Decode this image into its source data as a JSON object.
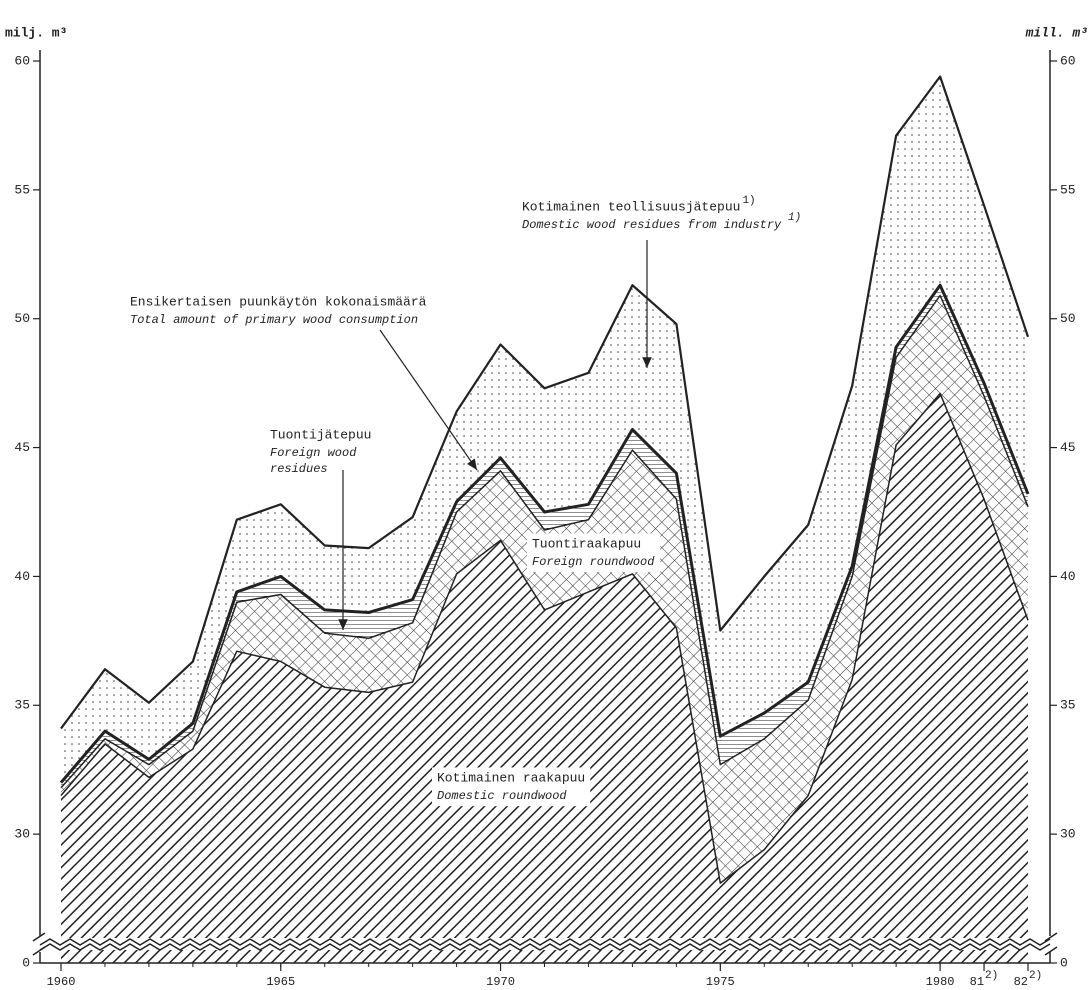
{
  "chart_data": {
    "type": "stacked_area",
    "y_label": "milj. m³",
    "y2_label": "mill. m³",
    "x": [
      1960,
      1961,
      1962,
      1963,
      1964,
      1965,
      1966,
      1967,
      1968,
      1969,
      1970,
      1971,
      1972,
      1973,
      1974,
      1975,
      1976,
      1977,
      1978,
      1979,
      1980,
      1981,
      1982
    ],
    "xlim": [
      1960,
      1982
    ],
    "xticks": [
      1960,
      1965,
      1970,
      1975,
      1980,
      {
        "value": 1981,
        "label": "81",
        "note": "2)"
      },
      {
        "value": 1982,
        "label": "82",
        "note": "2)"
      }
    ],
    "ylim": [
      0,
      60
    ],
    "axis_break": [
      0,
      25
    ],
    "yticks": [
      0,
      30,
      35,
      40,
      45,
      50,
      55,
      60
    ],
    "y2lim": [
      0,
      60
    ],
    "y2ticks": [
      0,
      30,
      35,
      40,
      45,
      50,
      55,
      60
    ],
    "series": [
      {
        "name": "Kotimainen raakapuu",
        "name_en": [
          "Domestic roundwood"
        ],
        "pattern": "diagonal",
        "color": "#222",
        "line_width": 1.5,
        "values": [
          31.5,
          33.5,
          32.2,
          33.3,
          37.1,
          36.7,
          35.7,
          35.5,
          35.9,
          40.1,
          41.4,
          38.7,
          39.4,
          40.1,
          38.0,
          28.1,
          29.4,
          31.5,
          36.0,
          45.1,
          47.1,
          43.0,
          38.3
        ]
      },
      {
        "name": "Tuontiraakapuu",
        "name_en": [
          "Foreign roundwood"
        ],
        "pattern": "crosshatch",
        "color": "#222",
        "line_width": 1.5,
        "values": [
          0.3,
          0.2,
          0.5,
          0.7,
          1.9,
          2.6,
          2.1,
          2.1,
          2.3,
          2.4,
          2.7,
          3.1,
          2.8,
          4.8,
          5.0,
          4.6,
          4.3,
          3.7,
          4.0,
          3.4,
          3.8,
          4.0,
          4.4
        ]
      },
      {
        "name": "Tuontijätepuu",
        "name_en": [
          "Foreign wood",
          "residues"
        ],
        "pattern": "horizontal",
        "color": "#222",
        "line_width": 3,
        "values": [
          0.2,
          0.3,
          0.2,
          0.3,
          0.4,
          0.7,
          0.9,
          1.0,
          0.9,
          0.4,
          0.5,
          0.7,
          0.6,
          0.8,
          1.0,
          1.1,
          1.0,
          0.7,
          0.4,
          0.4,
          0.4,
          0.5,
          0.5
        ]
      },
      {
        "name": "Kotimainen teollisuusjätepuu",
        "note": "1)",
        "name_en": [
          "Domestic wood residues from industry"
        ],
        "note_en": "1)",
        "pattern": "dots",
        "color": "#222",
        "line_width": 2.2,
        "values": [
          2.1,
          2.4,
          2.2,
          2.4,
          2.8,
          2.8,
          2.5,
          2.5,
          3.2,
          3.5,
          4.4,
          4.8,
          5.1,
          5.6,
          5.8,
          4.1,
          5.3,
          6.1,
          7.0,
          8.2,
          8.1,
          6.9,
          6.1
        ]
      }
    ],
    "annotations": [
      {
        "text": "Ensikertaisen puunkäytön kokonaismäärä",
        "text_en": "Total amount of primary wood consumption"
      }
    ]
  }
}
